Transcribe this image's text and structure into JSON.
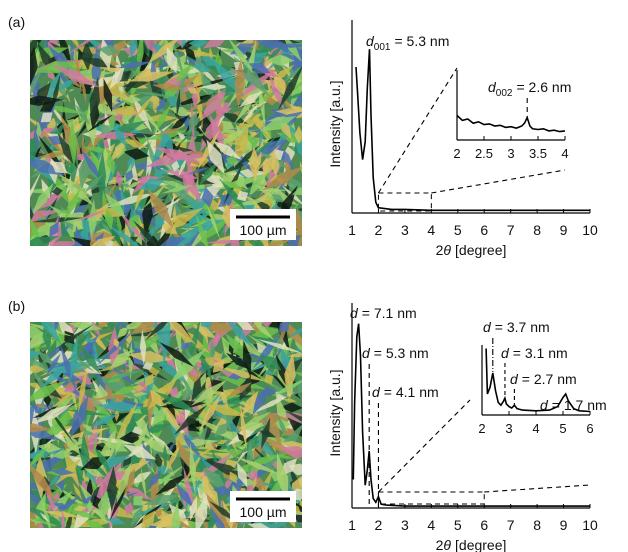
{
  "figure": {
    "panel_labels": [
      "(a)",
      "(b)"
    ],
    "scale_bars": [
      "100 µm",
      "100 µm"
    ]
  },
  "chart_data": [
    {
      "type": "line",
      "xlabel": {
        "number": "2",
        "symbol": "θ",
        "unit": "[degree]"
      },
      "ylabel": "Intensity [a.u.]",
      "xlim": [
        1,
        10
      ],
      "xticks": [
        1,
        2,
        3,
        4,
        5,
        6,
        7,
        8,
        9,
        10
      ],
      "ylim": [
        0,
        1
      ],
      "series": [
        {
          "color": "#000000",
          "x": [
            1.15,
            1.2,
            1.3,
            1.4,
            1.5,
            1.58,
            1.66,
            1.72,
            1.8,
            1.9,
            2.0,
            2.5,
            3,
            4,
            5,
            6,
            7,
            8,
            9,
            10
          ],
          "values": [
            0.82,
            0.7,
            0.45,
            0.3,
            0.4,
            0.7,
            0.92,
            0.55,
            0.2,
            0.06,
            0.03,
            0.02,
            0.02,
            0.015,
            0.015,
            0.015,
            0.015,
            0.015,
            0.015,
            0.015
          ]
        }
      ],
      "annotations": [
        {
          "d": "d",
          "sub": "001",
          "text": "= 5.3 nm"
        }
      ]
    },
    {
      "type": "line",
      "xlim": [
        2,
        4
      ],
      "xticks": [
        2,
        2.5,
        3,
        3.5,
        4
      ],
      "ylim": [
        0,
        1
      ],
      "series": [
        {
          "color": "#000000",
          "x": [
            2,
            2.1,
            2.2,
            2.3,
            2.4,
            2.5,
            2.6,
            2.7,
            2.8,
            2.9,
            3.0,
            3.1,
            3.2,
            3.25,
            3.3,
            3.35,
            3.4,
            3.5,
            3.6,
            3.7,
            3.8,
            3.9,
            4
          ],
          "values": [
            0.35,
            0.28,
            0.3,
            0.24,
            0.26,
            0.22,
            0.23,
            0.2,
            0.21,
            0.18,
            0.19,
            0.17,
            0.2,
            0.24,
            0.32,
            0.2,
            0.16,
            0.15,
            0.16,
            0.13,
            0.14,
            0.12,
            0.13
          ]
        }
      ],
      "annotations": [
        {
          "d": "d",
          "sub": "002",
          "text": "= 2.6 nm"
        }
      ]
    },
    {
      "type": "line",
      "xlabel": {
        "number": "2",
        "symbol": "θ",
        "unit": "[degree]"
      },
      "ylabel": "Intensity [a.u.]",
      "xlim": [
        1,
        10
      ],
      "xticks": [
        1,
        2,
        3,
        4,
        5,
        6,
        7,
        8,
        9,
        10
      ],
      "ylim": [
        0,
        1
      ],
      "series": [
        {
          "color": "#000000",
          "x": [
            1.05,
            1.1,
            1.18,
            1.25,
            1.32,
            1.4,
            1.5,
            1.58,
            1.65,
            1.72,
            1.8,
            1.9,
            2.0,
            2.1,
            2.3,
            3,
            4,
            5,
            6,
            7,
            8,
            9,
            10
          ],
          "values": [
            0.15,
            0.55,
            0.9,
            0.97,
            0.8,
            0.4,
            0.12,
            0.2,
            0.3,
            0.15,
            0.05,
            0.03,
            0.06,
            0.02,
            0.015,
            0.01,
            0.01,
            0.01,
            0.01,
            0.01,
            0.01,
            0.01,
            0.01
          ]
        }
      ],
      "annotations": [
        {
          "d": "d",
          "text": "= 7.1 nm"
        },
        {
          "d": "d",
          "text": "= 5.3 nm"
        },
        {
          "d": "d",
          "text": "= 4.1 nm"
        }
      ]
    },
    {
      "type": "line",
      "xlim": [
        2,
        6
      ],
      "xticks": [
        2,
        3,
        4,
        5,
        6
      ],
      "ylim": [
        0,
        1
      ],
      "series": [
        {
          "color": "#000000",
          "x": [
            2.15,
            2.2,
            2.3,
            2.4,
            2.5,
            2.6,
            2.7,
            2.8,
            2.85,
            2.9,
            3.0,
            3.1,
            3.2,
            3.3,
            3.5,
            4.0,
            4.5,
            4.8,
            5.0,
            5.1,
            5.2,
            5.4,
            5.6,
            6.0
          ],
          "values": [
            0.95,
            0.3,
            0.4,
            0.6,
            0.35,
            0.18,
            0.14,
            0.2,
            0.24,
            0.16,
            0.12,
            0.1,
            0.14,
            0.09,
            0.07,
            0.06,
            0.07,
            0.12,
            0.25,
            0.3,
            0.2,
            0.09,
            0.06,
            0.05
          ]
        }
      ],
      "annotations": [
        {
          "d": "d",
          "text": "= 3.7 nm"
        },
        {
          "d": "d",
          "text": "= 3.1 nm"
        },
        {
          "d": "d",
          "text": "= 2.7 nm"
        },
        {
          "d": "d",
          "text": "= 1.7 nm"
        }
      ]
    }
  ]
}
